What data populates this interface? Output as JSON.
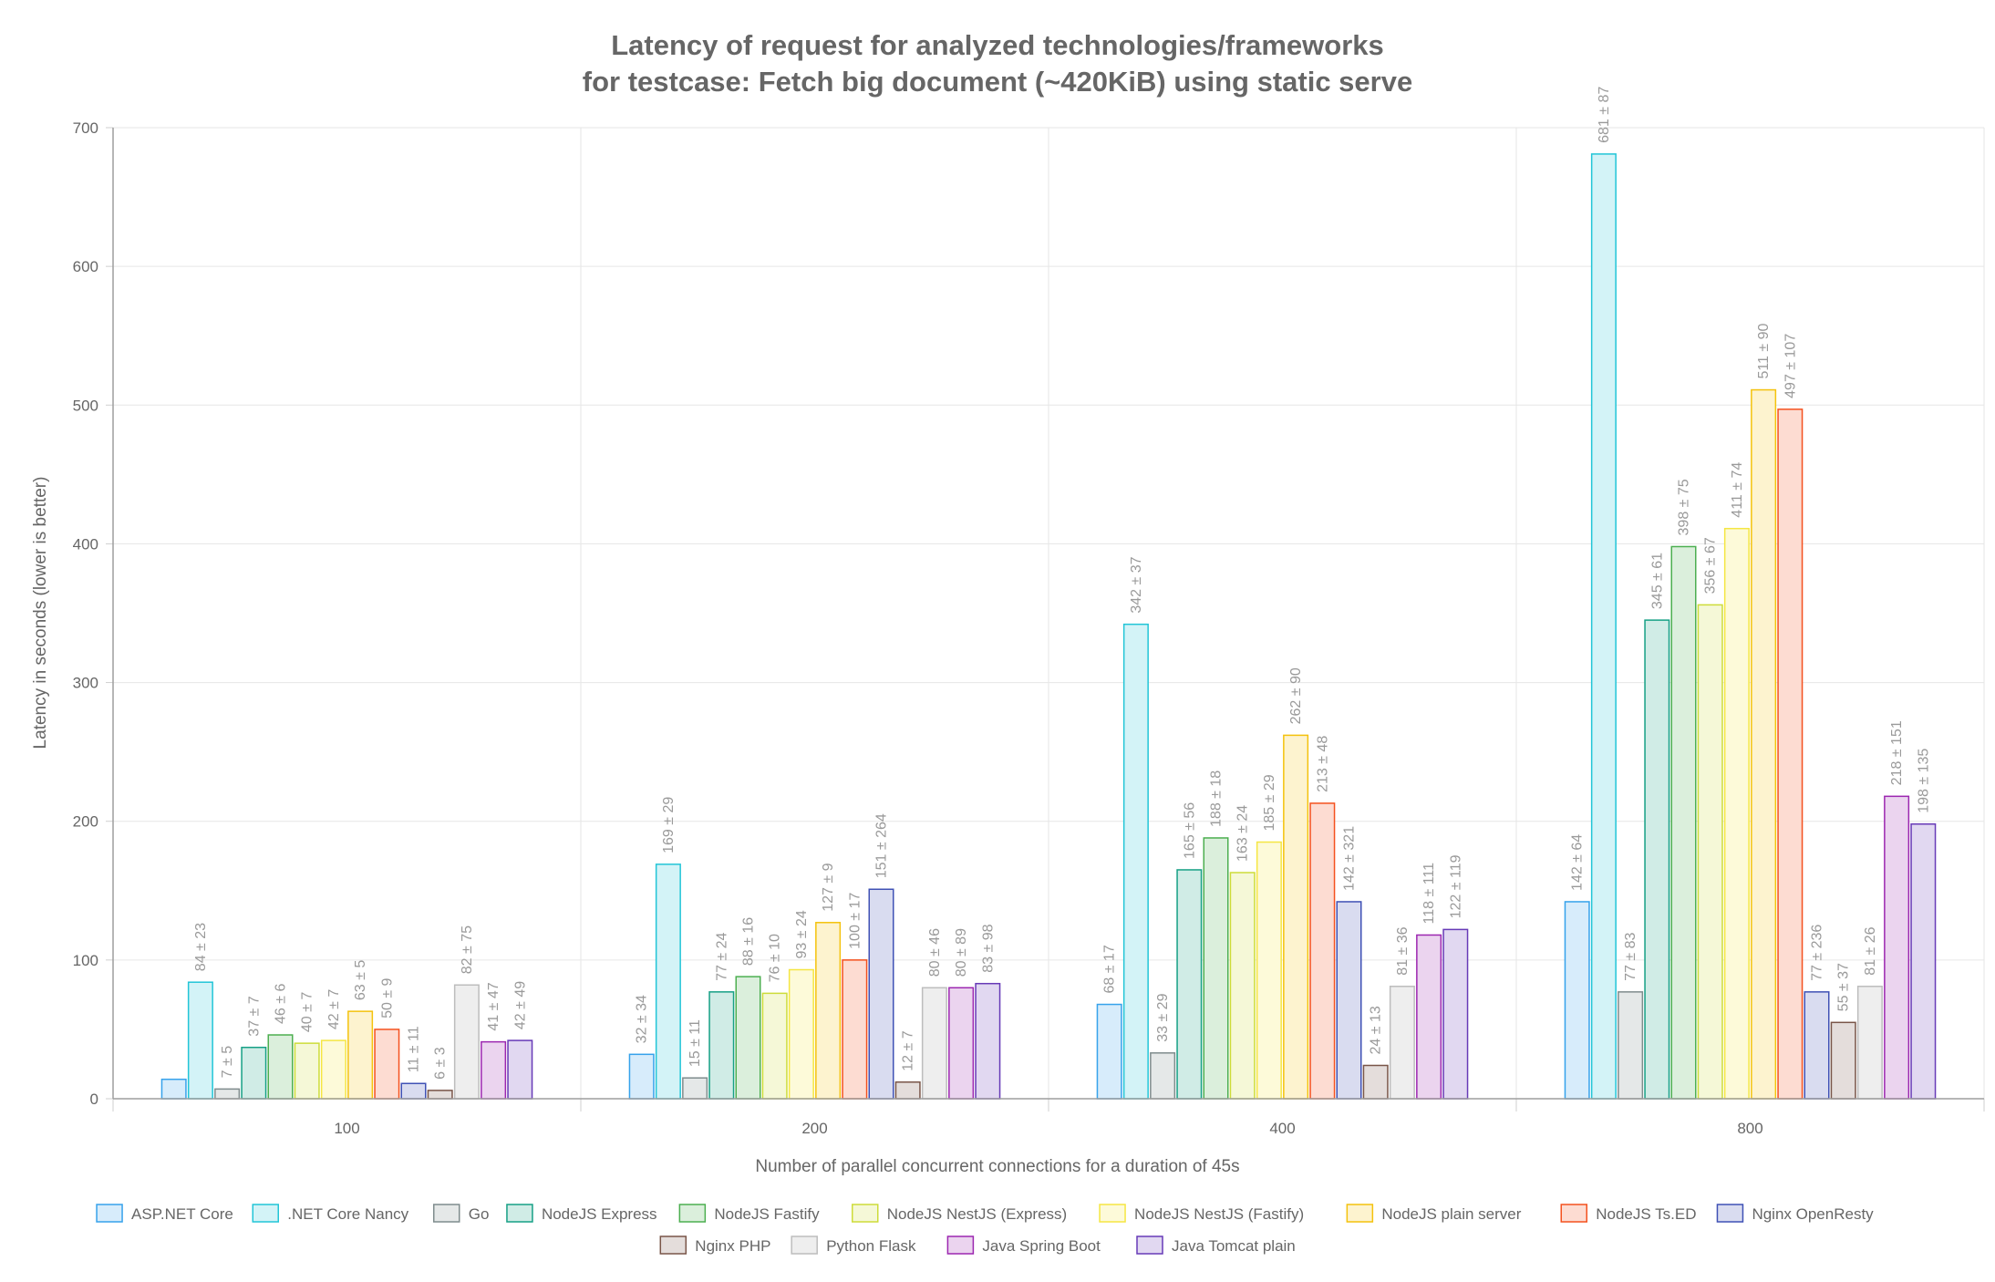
{
  "chart_data": {
    "type": "bar",
    "title": [
      "Latency of request for analyzed technologies/frameworks",
      "for testcase: Fetch big document (~420KiB) using static serve"
    ],
    "xlabel": "Number of parallel concurrent connections for a duration of 45s",
    "ylabel": "Latency in seconds (lower is better)",
    "categories": [
      "100",
      "200",
      "400",
      "800"
    ],
    "ylim": [
      0,
      700
    ],
    "yticks": [
      "0",
      "100",
      "200",
      "300",
      "400",
      "500",
      "600",
      "700"
    ],
    "grid": true,
    "legend_position": "bottom",
    "series": [
      {
        "name": "ASP.NET Core",
        "color": "#36a2eb",
        "fill": "#d7ecfb",
        "values": [
          14,
          32,
          68,
          142
        ],
        "labels": [
          "",
          "32 ± 34",
          "68 ± 17",
          "142 ± 64"
        ]
      },
      {
        "name": ".NET Core Nancy",
        "color": "#22c5d7",
        "fill": "#d3f3f7",
        "values": [
          84,
          169,
          342,
          681
        ],
        "labels": [
          "84 ± 23",
          "169 ± 29",
          "342 ± 37",
          "681 ± 87"
        ]
      },
      {
        "name": "Go",
        "color": "#7f8c8d",
        "fill": "#e5e8e8",
        "values": [
          7,
          15,
          33,
          77
        ],
        "labels": [
          "7 ± 5",
          "15 ± 11",
          "33 ± 29",
          "77 ± 83"
        ]
      },
      {
        "name": "NodeJS Express",
        "color": "#16a085",
        "fill": "#d0ece6",
        "values": [
          37,
          77,
          165,
          345
        ],
        "labels": [
          "37 ± 7",
          "77 ± 24",
          "165 ± 56",
          "345 ± 61"
        ]
      },
      {
        "name": "NodeJS Fastify",
        "color": "#4caf50",
        "fill": "#dbefdc",
        "values": [
          46,
          88,
          188,
          398
        ],
        "labels": [
          "46 ± 6",
          "88 ± 16",
          "188 ± 18",
          "398 ± 75"
        ]
      },
      {
        "name": "NodeJS NestJS (Express)",
        "color": "#cddc39",
        "fill": "#f5f8d7",
        "values": [
          40,
          76,
          163,
          356
        ],
        "labels": [
          "40 ± 7",
          "76 ± 10",
          "163 ± 24",
          "356 ± 67"
        ]
      },
      {
        "name": "NodeJS NestJS (Fastify)",
        "color": "#f5e642",
        "fill": "#fdfad9",
        "values": [
          42,
          93,
          185,
          411
        ],
        "labels": [
          "42 ± 7",
          "93 ± 24",
          "185 ± 29",
          "411 ± 74"
        ]
      },
      {
        "name": "NodeJS plain server",
        "color": "#f4c20d",
        "fill": "#fdf3cf",
        "values": [
          63,
          127,
          262,
          511
        ],
        "labels": [
          "63 ± 5",
          "127 ± 9",
          "262 ± 90",
          "511 ± 90"
        ]
      },
      {
        "name": "NodeJS Ts.ED",
        "color": "#f4511e",
        "fill": "#fddcd2",
        "values": [
          50,
          100,
          213,
          497
        ],
        "labels": [
          "50 ± 9",
          "100 ± 17",
          "213 ± 48",
          "497 ± 107"
        ]
      },
      {
        "name": "Nginx OpenResty",
        "color": "#3f51b5",
        "fill": "#d9dcf0",
        "values": [
          11,
          151,
          142,
          77
        ],
        "labels": [
          "11 ± 11",
          "151 ± 264",
          "142 ± 321",
          "77 ± 236"
        ]
      },
      {
        "name": "Nginx PHP",
        "color": "#795548",
        "fill": "#e4dddb",
        "values": [
          6,
          12,
          24,
          55
        ],
        "labels": [
          "6 ± 3",
          "12 ± 7",
          "24 ± 13",
          "55 ± 37"
        ]
      },
      {
        "name": "Python Flask",
        "color": "#bdbdbd",
        "fill": "#eeeeee",
        "values": [
          82,
          80,
          81,
          81
        ],
        "labels": [
          "82 ± 75",
          "80 ± 46",
          "81 ± 36",
          "81 ± 26"
        ]
      },
      {
        "name": "Java Spring Boot",
        "color": "#9c27b0",
        "fill": "#ebd4ef",
        "values": [
          41,
          80,
          118,
          218
        ],
        "labels": [
          "41 ± 47",
          "80 ± 89",
          "118 ± 111",
          "218 ± 151"
        ]
      },
      {
        "name": "Java Tomcat plain",
        "color": "#673ab7",
        "fill": "#e1d8f1",
        "values": [
          42,
          83,
          122,
          198
        ],
        "labels": [
          "42 ± 49",
          "83 ± 98",
          "122 ± 119",
          "198 ± 135"
        ]
      }
    ]
  }
}
